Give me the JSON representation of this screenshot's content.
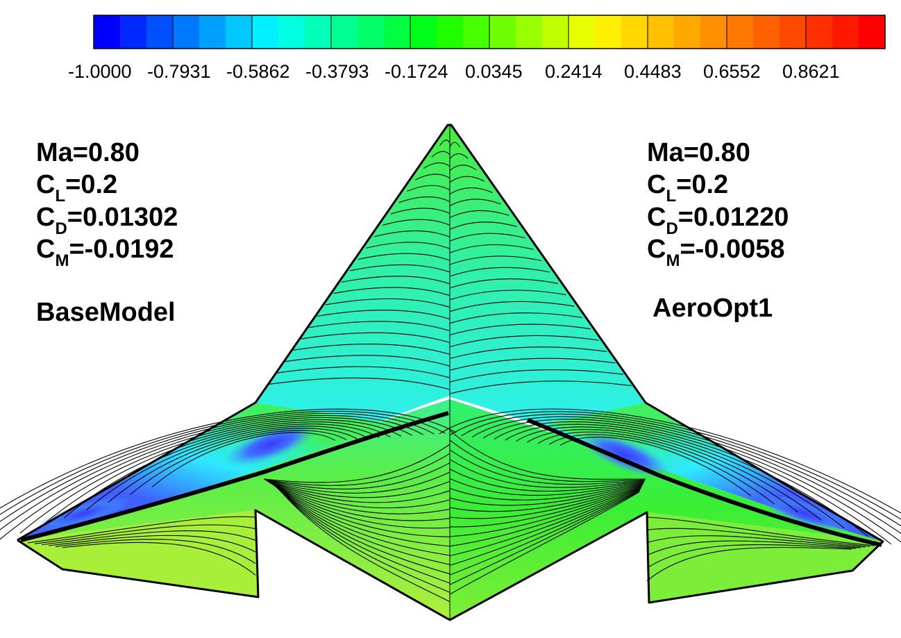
{
  "colorbar": {
    "tick_labels": [
      "-1.0000",
      "-0.7931",
      "-0.5862",
      "-0.3793",
      "-0.1724",
      "0.0345",
      "0.2414",
      "0.4483",
      "0.6552",
      "0.8621"
    ],
    "colors": [
      "#0000ff",
      "#0028ff",
      "#0050ff",
      "#0078ff",
      "#00a0ff",
      "#00c8ff",
      "#00f0ff",
      "#00ffe0",
      "#00ffb8",
      "#00ff90",
      "#00ff68",
      "#00ff40",
      "#00ff18",
      "#20ff00",
      "#48ff00",
      "#70ff00",
      "#98ff00",
      "#c0ff00",
      "#e8ff00",
      "#ffef00",
      "#ffd800",
      "#ffc000",
      "#ffa800",
      "#ff9000",
      "#ff7800",
      "#ff6000",
      "#ff4800",
      "#ff3000",
      "#ff1800",
      "#ff0000"
    ]
  },
  "left_panel": {
    "ma": "Ma=0.80",
    "cl_prefix": "C",
    "cl_sub": "L",
    "cl_value": "=0.2",
    "cd_prefix": "C",
    "cd_sub": "D",
    "cd_value": "=0.01302",
    "cm_prefix": "C",
    "cm_sub": "M",
    "cm_value": "=-0.0192",
    "model_name": "BaseModel"
  },
  "right_panel": {
    "ma": "Ma=0.80",
    "cl_prefix": "C",
    "cl_sub": "L",
    "cl_value": "=0.2",
    "cd_prefix": "C",
    "cd_sub": "D",
    "cd_value": "=0.01220",
    "cm_prefix": "C",
    "cm_sub": "M",
    "cm_value": "=-0.0058",
    "model_name": "AeroOpt1"
  },
  "surface_colors": {
    "outline": "#000000",
    "contour_line": "#000000",
    "low_suction": "#3b4dff",
    "mid_suction": "#36d8ff",
    "cyan": "#2ef0ff",
    "teal": "#2cf2b8",
    "green": "#3cf03c",
    "yellow_green": "#a8ef3a"
  }
}
